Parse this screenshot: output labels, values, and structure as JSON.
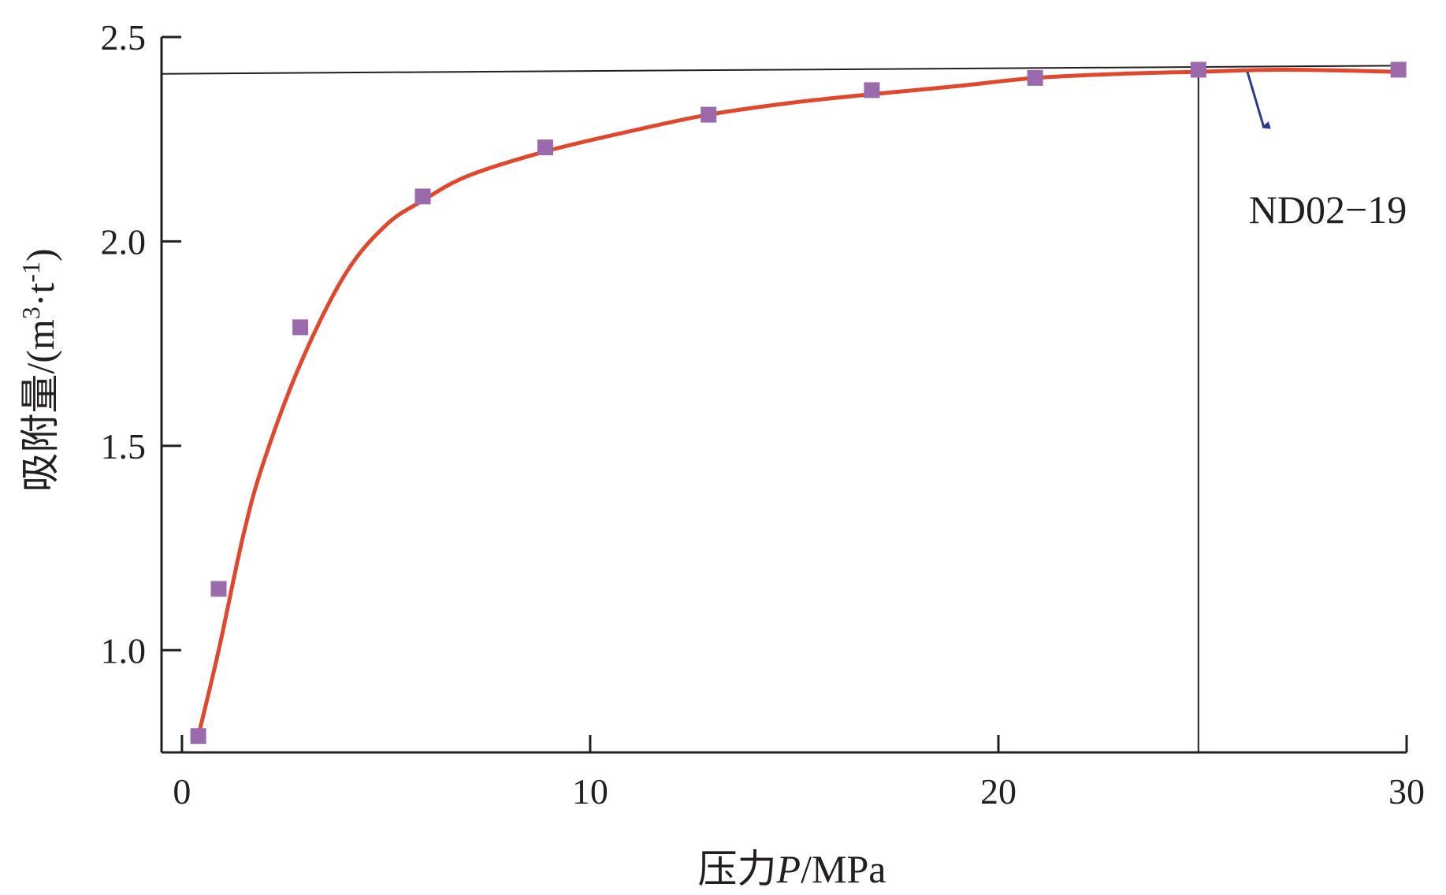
{
  "chart_data": {
    "type": "scatter",
    "xlabel_main": "压力",
    "xlabel_var": "P",
    "xlabel_unit": "/MPa",
    "ylabel_main": "吸附量/(m",
    "ylabel_sup1": "3",
    "ylabel_mid": "·t",
    "ylabel_sup2": "-1",
    "ylabel_end": ")",
    "xlim": [
      -0.5,
      30
    ],
    "ylim": [
      0.75,
      2.5
    ],
    "x_ticks": [
      0,
      10,
      20,
      30
    ],
    "x_tick_labels": [
      "0",
      "10",
      "20",
      "30"
    ],
    "y_ticks": [
      1.0,
      1.5,
      2.0,
      2.5
    ],
    "y_tick_labels": [
      "1.0",
      "1.5",
      "2.0",
      "2.5"
    ],
    "series": [
      {
        "kind": "scatter",
        "marker": "square",
        "color": "#9b6aad",
        "x": [
          0.4,
          0.9,
          2.9,
          5.9,
          8.9,
          12.9,
          16.9,
          20.9,
          24.9,
          29.8
        ],
        "y": [
          0.79,
          1.15,
          1.79,
          2.11,
          2.23,
          2.31,
          2.37,
          2.4,
          2.42,
          2.42
        ]
      },
      {
        "kind": "line",
        "color": "#e0472c",
        "x": [
          0.4,
          0.9,
          1.5,
          2.0,
          2.9,
          4.0,
          5.0,
          5.9,
          7.0,
          8.9,
          11.0,
          12.9,
          15.0,
          16.9,
          19.0,
          20.9,
          23.0,
          24.9,
          27.0,
          29.8
        ],
        "y": [
          0.79,
          1.0,
          1.28,
          1.46,
          1.7,
          1.92,
          2.04,
          2.1,
          2.16,
          2.22,
          2.27,
          2.31,
          2.34,
          2.36,
          2.38,
          2.4,
          2.41,
          2.415,
          2.42,
          2.415
        ]
      }
    ],
    "reference_lines": {
      "horizontal": {
        "x": [
          -0.5,
          29.8
        ],
        "y": [
          2.41,
          2.43
        ],
        "color": "#231f20"
      },
      "vertical": {
        "x": 24.9,
        "y": [
          0.75,
          2.42
        ],
        "color": "#231f20"
      }
    },
    "annotation": {
      "text": "ND02−19",
      "anchor_data": [
        26.1,
        2.415
      ],
      "arrow_tip_data": [
        26.5,
        2.28
      ],
      "arrow_color": "#2b3990"
    }
  }
}
